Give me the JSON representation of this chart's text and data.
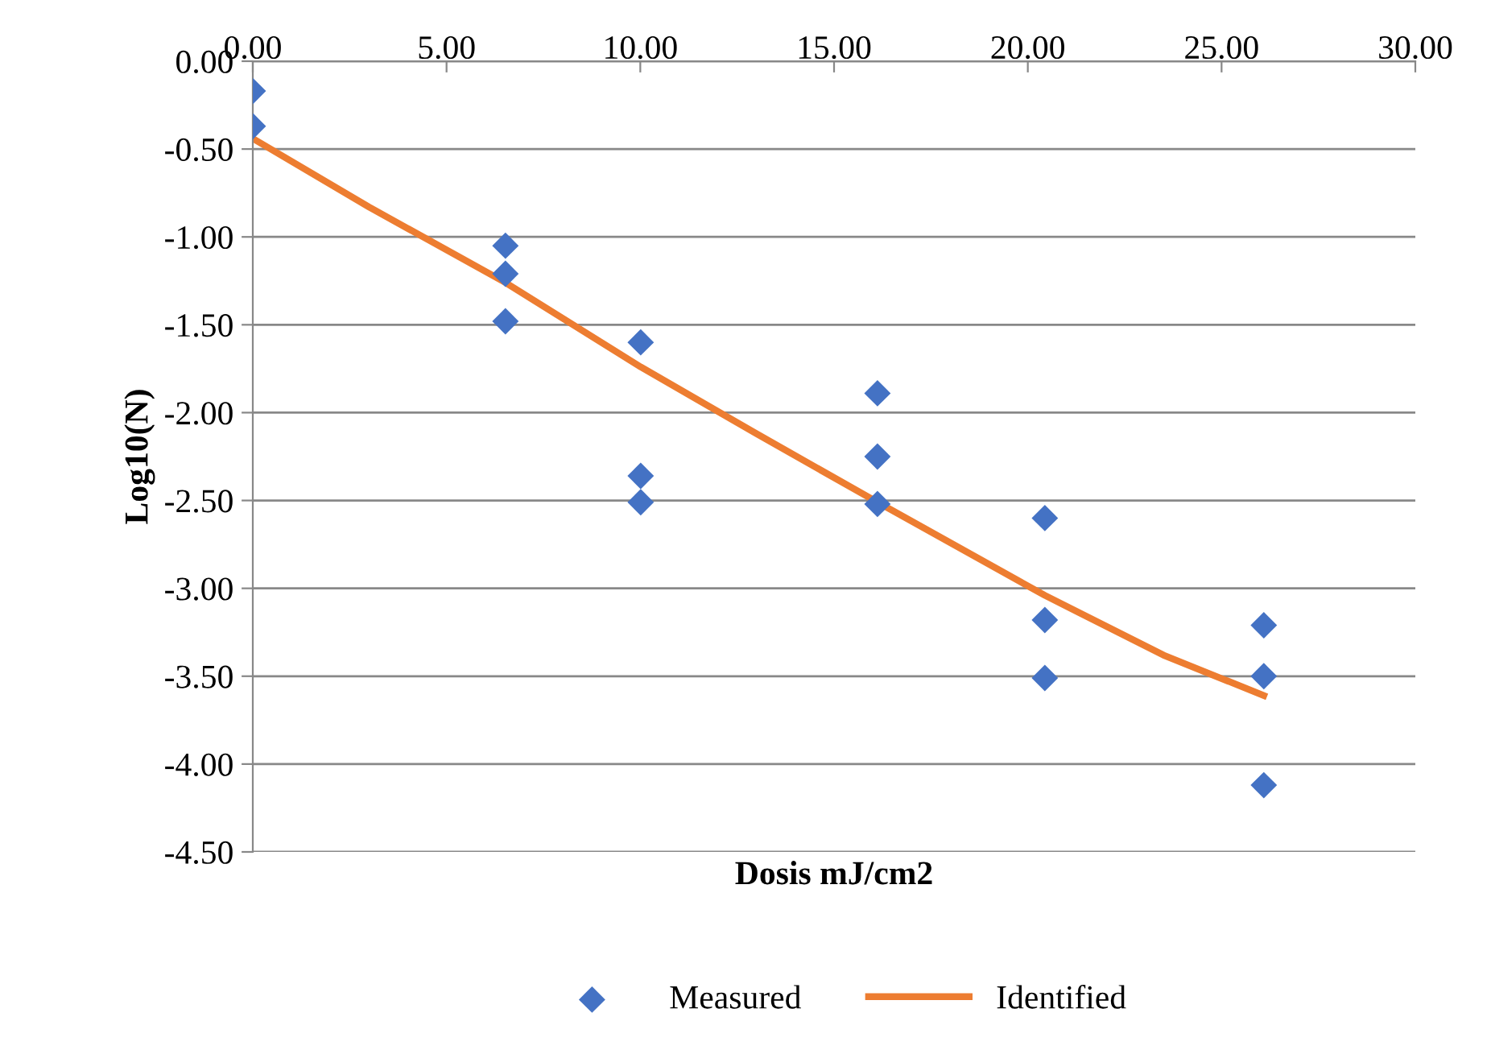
{
  "chart_data": {
    "type": "scatter",
    "xlabel": "Dosis mJ/cm2",
    "ylabel": "Log10(N)",
    "series": [
      {
        "name": "Measured",
        "color": "#4472c4",
        "marker": "diamond",
        "x": [
          0,
          0,
          6.52,
          6.52,
          6.52,
          10.01,
          10.01,
          10.01,
          16.12,
          16.12,
          16.12,
          20.44,
          20.44,
          20.44,
          26.09,
          26.09,
          26.09
        ],
        "values": [
          -0.17,
          -0.37,
          -1.05,
          -1.21,
          -1.48,
          -1.6,
          -2.36,
          -2.51,
          -1.89,
          -2.25,
          -2.52,
          -2.6,
          -3.18,
          -3.51,
          -3.21,
          -3.5,
          -4.12
        ]
      },
      {
        "name": "Identified",
        "type": "line",
        "color": "#ed7d31",
        "marker": "none",
        "x": [
          0,
          3,
          6.52,
          10.01,
          13,
          16.12,
          20.44,
          23.5,
          26.09
        ],
        "values": [
          -0.44,
          -0.83,
          -1.26,
          -1.74,
          -2.12,
          -2.51,
          -3.04,
          -3.38,
          -3.61
        ]
      }
    ],
    "xlim": [
      0,
      30
    ],
    "xticks": [
      {
        "value": 0,
        "label": "0.00"
      },
      {
        "value": 5,
        "label": "5.00"
      },
      {
        "value": 10,
        "label": "10.00"
      },
      {
        "value": 15,
        "label": "15.00"
      },
      {
        "value": 20,
        "label": "20.00"
      },
      {
        "value": 25,
        "label": "25.00"
      },
      {
        "value": 30,
        "label": "30.00"
      }
    ],
    "ylim": [
      -4.5,
      0
    ],
    "yticks": [
      {
        "value": 0,
        "label": "0.00"
      },
      {
        "value": -0.5,
        "label": "-0.50"
      },
      {
        "value": -1,
        "label": "-1.00"
      },
      {
        "value": -1.5,
        "label": "-1.50"
      },
      {
        "value": -2,
        "label": "-2.00"
      },
      {
        "value": -2.5,
        "label": "-2.50"
      },
      {
        "value": -3,
        "label": "-3.00"
      },
      {
        "value": -3.5,
        "label": "-3.50"
      },
      {
        "value": -4,
        "label": "-4.00"
      },
      {
        "value": -4.5,
        "label": "-4.50"
      }
    ],
    "grid": "y",
    "legend": "bottom"
  }
}
